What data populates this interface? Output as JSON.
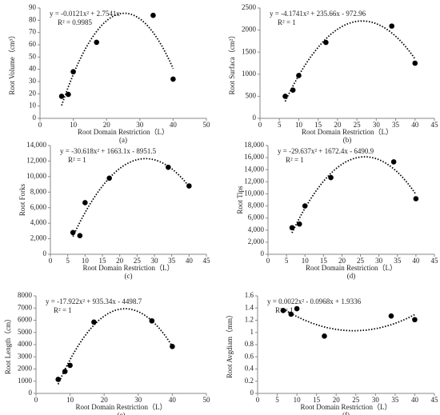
{
  "chart_data": [
    {
      "type": "scatter",
      "label": "(a)",
      "x_label": "Root Domain Restriction（L）",
      "y_label": "Root Volume（cm³）",
      "equation": "y = -0.0121x² + 2.7541x",
      "r_squared": "R² = 0.9985",
      "trendline": "poly2",
      "color": "#000000",
      "x": [
        6.5,
        8.5,
        10,
        17,
        34,
        40
      ],
      "values": [
        18,
        19.5,
        38,
        62,
        84,
        32
      ],
      "xlim": [
        0,
        50
      ],
      "xticks": [
        0,
        10,
        20,
        30,
        40,
        50
      ],
      "ylim": [
        0,
        90
      ],
      "yticks": [
        0,
        10,
        20,
        30,
        40,
        50,
        60,
        70,
        80,
        90
      ]
    },
    {
      "type": "scatter",
      "label": "(b)",
      "x_label": "Root Domain Restriction（L）",
      "y_label": "Root Surfaca（cm²）",
      "equation": "y = -4.1741x² + 235.66x - 972.96",
      "r_squared": "R² = 1",
      "trendline": "poly2",
      "color": "#000000",
      "x": [
        6.5,
        8.5,
        10,
        17,
        34,
        40
      ],
      "values": [
        500,
        640,
        970,
        1720,
        2090,
        1250
      ],
      "xlim": [
        0,
        45
      ],
      "xticks": [
        0,
        5,
        10,
        15,
        20,
        25,
        30,
        35,
        40,
        45
      ],
      "ylim": [
        0,
        2500
      ],
      "yticks": [
        0,
        500,
        1000,
        1500,
        2000,
        2500
      ]
    },
    {
      "type": "scatter",
      "label": "(c)",
      "x_label": "Root Domain Restriction（L）",
      "y_label": "Root Forks",
      "equation": "y = -30.618x² + 1663.1x - 8951.5",
      "r_squared": "R² = 1",
      "trendline": "poly2",
      "color": "#000000",
      "x": [
        6.5,
        8.5,
        10,
        17,
        34,
        40
      ],
      "values": [
        2800,
        2400,
        6650,
        9800,
        11200,
        8800
      ],
      "xlim": [
        0,
        45
      ],
      "xticks": [
        0,
        5,
        10,
        15,
        20,
        25,
        30,
        35,
        40,
        45
      ],
      "ylim": [
        0,
        14000
      ],
      "yticks": [
        0,
        {
          "value": 2000,
          "label": "2,000"
        },
        {
          "value": 4000,
          "label": "4,000"
        },
        {
          "value": 6000,
          "label": "6,000"
        },
        {
          "value": 8000,
          "label": "8,000"
        },
        {
          "value": 10000,
          "label": "10,000"
        },
        {
          "value": 12000,
          "label": "12,000"
        },
        {
          "value": 14000,
          "label": "14,000"
        }
      ]
    },
    {
      "type": "scatter",
      "label": "(d)",
      "x_label": "Root Domain Restriction（L）",
      "y_label": "Root Tips",
      "equation": "y = -29.637x² + 1672.4x - 6490.9",
      "r_squared": "R² = 1",
      "trendline": "poly2",
      "color": "#000000",
      "x": [
        6.5,
        8.5,
        10,
        17,
        34,
        40
      ],
      "values": [
        4400,
        5000,
        8000,
        12700,
        15300,
        9200
      ],
      "xlim": [
        0,
        45
      ],
      "xticks": [
        0,
        5,
        10,
        15,
        20,
        25,
        30,
        35,
        40,
        45
      ],
      "ylim": [
        0,
        18000
      ],
      "yticks": [
        0,
        {
          "value": 2000,
          "label": "2,000"
        },
        {
          "value": 4000,
          "label": "4,000"
        },
        {
          "value": 6000,
          "label": "6,000"
        },
        {
          "value": 8000,
          "label": "8,000"
        },
        {
          "value": 10000,
          "label": "10,000"
        },
        {
          "value": 12000,
          "label": "12,000"
        },
        {
          "value": 14000,
          "label": "14,000"
        },
        {
          "value": 16000,
          "label": "16,000"
        },
        {
          "value": 18000,
          "label": "18,000"
        }
      ]
    },
    {
      "type": "scatter",
      "label": "(e)",
      "x_label": "Root Domain Restriction（L）",
      "y_label": "Root Length（cm）",
      "equation": "y = -17.922x² + 935.34x - 4498.7",
      "r_squared": "R² = 1",
      "trendline": "poly2",
      "color": "#000000",
      "x": [
        6.5,
        8.5,
        10,
        17,
        34,
        40
      ],
      "values": [
        1150,
        1800,
        2300,
        5850,
        5950,
        3850
      ],
      "xlim": [
        0,
        50
      ],
      "xticks": [
        0,
        10,
        20,
        30,
        40,
        50
      ],
      "ylim": [
        0,
        8000
      ],
      "yticks": [
        0,
        1000,
        2000,
        3000,
        4000,
        5000,
        6000,
        7000,
        8000
      ]
    },
    {
      "type": "scatter",
      "label": "(f)",
      "x_label": "Root Domain Restriction（L）",
      "y_label": "Root Avgdiam（mm）",
      "equation": "y = 0.0022x² - 0.0968x + 1.9336",
      "r_squared": "R² = 1",
      "trendline": "poly2",
      "color": "#000000",
      "x": [
        6.5,
        8.5,
        10,
        17,
        34,
        40
      ],
      "values": [
        1.36,
        1.3,
        1.39,
        0.94,
        1.27,
        1.21
      ],
      "xlim": [
        0,
        45
      ],
      "xticks": [
        0,
        5,
        10,
        15,
        20,
        25,
        30,
        35,
        40,
        45
      ],
      "ylim": [
        0,
        1.6
      ],
      "yticks": [
        0,
        0.2,
        0.4,
        0.6,
        0.8,
        1,
        1.2,
        1.4,
        1.6
      ]
    }
  ]
}
